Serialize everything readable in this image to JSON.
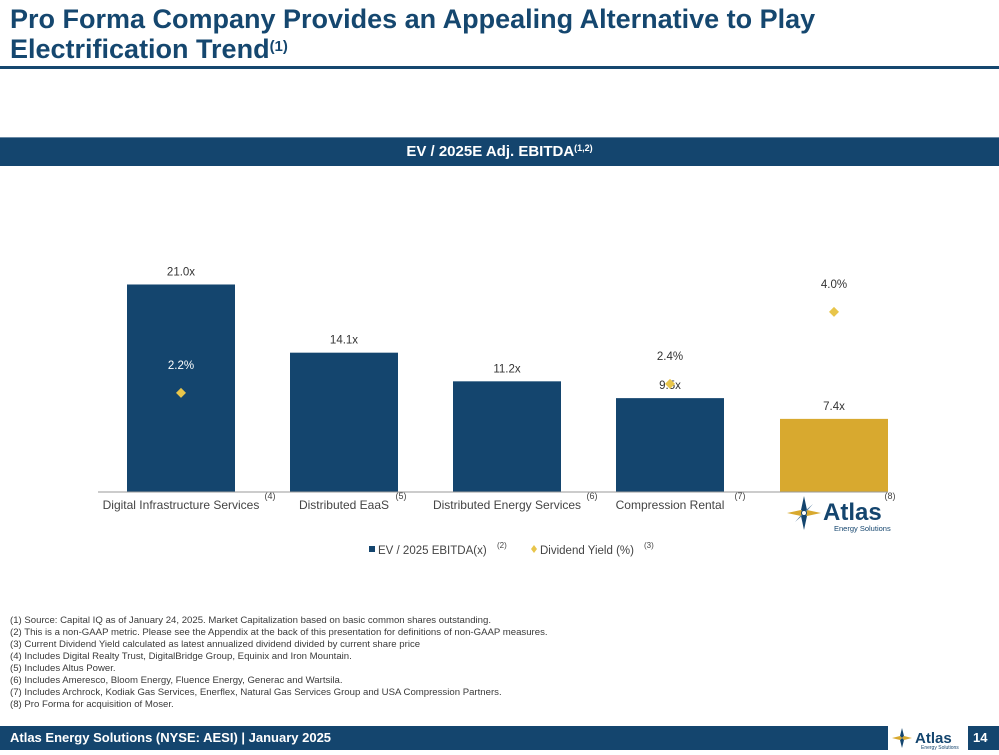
{
  "header": {
    "title": "Pro Forma Company Provides an Appealing Alternative to Play Electrification Trend",
    "title_note": "(1)"
  },
  "band": {
    "label": "EV / 2025E Adj. EBITDA",
    "note": "(1,2)"
  },
  "chart_data": {
    "type": "bar",
    "title": "EV / 2025E Adj. EBITDA",
    "categories": [
      "Digital Infrastructure Services",
      "Distributed EaaS",
      "Distributed Energy Services",
      "Compression Rental",
      "Atlas Energy Solutions"
    ],
    "category_notes": [
      "(4)",
      "(5)",
      "(6)",
      "(7)",
      "(8)"
    ],
    "series": [
      {
        "name": "EV / 2025 EBITDA(x)",
        "note": "(2)",
        "values": [
          21.0,
          14.1,
          11.2,
          9.5,
          7.4
        ],
        "labels": [
          "21.0x",
          "14.1x",
          "11.2x",
          "9.5x",
          "7.4x"
        ]
      },
      {
        "name": "Dividend Yield (%)",
        "note": "(3)",
        "values": [
          2.2,
          null,
          null,
          2.4,
          4.0
        ],
        "labels": [
          "2.2%",
          "",
          "",
          "2.4%",
          "4.0%"
        ]
      }
    ],
    "colors": {
      "bar": "#14456e",
      "highlight_bar": "#d8a92f",
      "marker": "#e8c54a"
    },
    "highlight_index": 4,
    "ylim": [
      0,
      25.3
    ],
    "y2lim": [
      0,
      5.55
    ],
    "xlabel": "",
    "ylabel": "",
    "legend": "bottom"
  },
  "logo": {
    "word": "Atlas",
    "sub": "Energy Solutions"
  },
  "footnotes": [
    "(1) Source: Capital IQ as of January 24, 2025. Market Capitalization based on basic common shares outstanding.",
    "(2) This is a non-GAAP metric. Please see the Appendix at the back of this presentation for definitions of non-GAAP measures.",
    "(3) Current Dividend Yield calculated as latest annualized dividend divided by current share price",
    "(4) Includes Digital Realty Trust, DigitalBridge Group, Equinix and Iron Mountain.",
    "(5) Includes Altus Power.",
    "(6) Includes Ameresco, Bloom Energy, Fluence Energy, Generac and Wartsila.",
    "(7) Includes Archrock, Kodiak Gas Services, Enerflex, Natural Gas Services Group and USA Compression Partners.",
    "(8) Pro Forma for acquisition of Moser."
  ],
  "footer": {
    "text": "Atlas Energy Solutions (NYSE: AESI)  |  January 2025",
    "page": "14"
  }
}
